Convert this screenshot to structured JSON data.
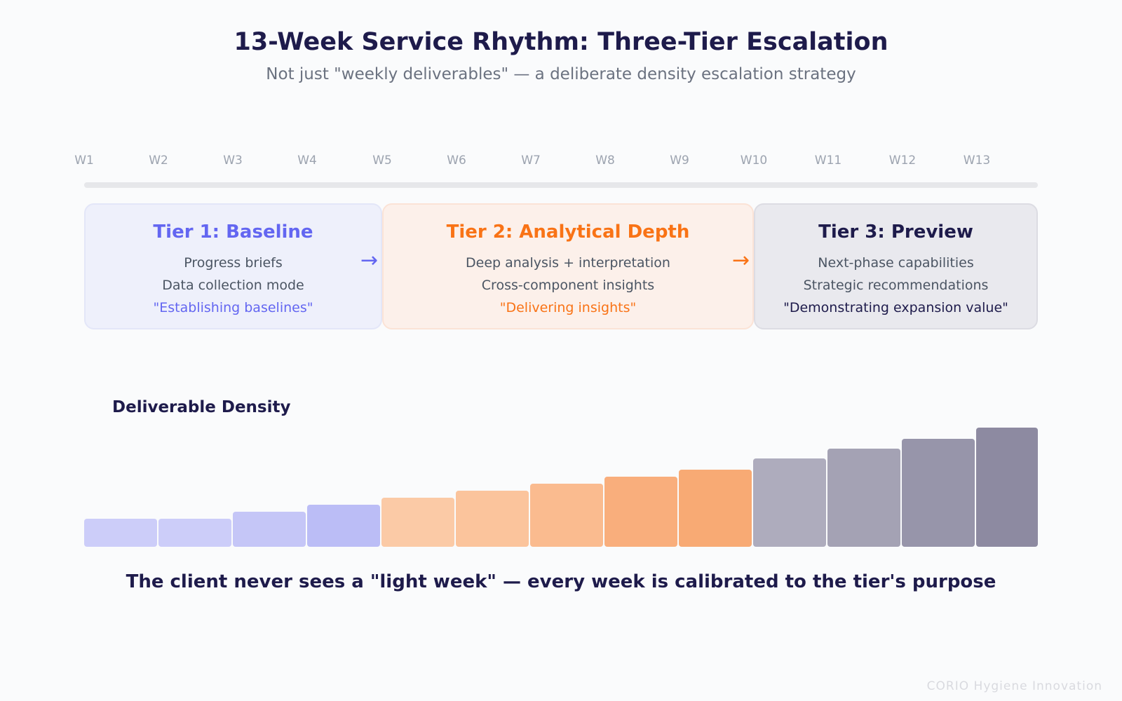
{
  "header": {
    "title": "13-Week Service Rhythm: Three-Tier Escalation",
    "subtitle": "Not just \"weekly deliverables\" — a deliberate density escalation strategy"
  },
  "timeline": {
    "weeks": [
      "W1",
      "W2",
      "W3",
      "W4",
      "W5",
      "W6",
      "W7",
      "W8",
      "W9",
      "W10",
      "W11",
      "W12",
      "W13"
    ]
  },
  "tiers": [
    {
      "title": "Tier 1: Baseline",
      "lines": [
        "Progress briefs",
        "Data collection mode"
      ],
      "quote": "\"Establishing baselines\"",
      "color": "#6366f1"
    },
    {
      "title": "Tier 2: Analytical Depth",
      "lines": [
        "Deep analysis + interpretation",
        "Cross-component insights"
      ],
      "quote": "\"Delivering insights\"",
      "color": "#f97316"
    },
    {
      "title": "Tier 3: Preview",
      "lines": [
        "Next-phase capabilities",
        "Strategic recommendations"
      ],
      "quote": "\"Demonstrating expansion value\"",
      "color": "#1e1b4b"
    }
  ],
  "arrows": [
    "→",
    "→"
  ],
  "density": {
    "label": "Deliverable Density"
  },
  "chart_data": {
    "type": "bar",
    "categories": [
      "W1",
      "W2",
      "W3",
      "W4",
      "W5",
      "W6",
      "W7",
      "W8",
      "W9",
      "W10",
      "W11",
      "W12",
      "W13"
    ],
    "values": [
      2,
      2,
      2.5,
      3,
      3.5,
      4,
      4.5,
      5,
      5.5,
      6.3,
      7,
      7.7,
      8.5
    ],
    "colors": [
      "#cccdf9",
      "#cccdf9",
      "#c5c6f7",
      "#bbbdf6",
      "#fbcaa6",
      "#fbc49c",
      "#fabb8f",
      "#f9ae7c",
      "#f8aa74",
      "#aeacbd",
      "#a4a2b4",
      "#9795aa",
      "#8d8aa1"
    ],
    "ylim": [
      0,
      8.5
    ]
  },
  "footer": {
    "note": "The client never sees a \"light week\" — every week is calibrated to the tier's purpose",
    "watermark": "CORIO Hygiene Innovation"
  }
}
